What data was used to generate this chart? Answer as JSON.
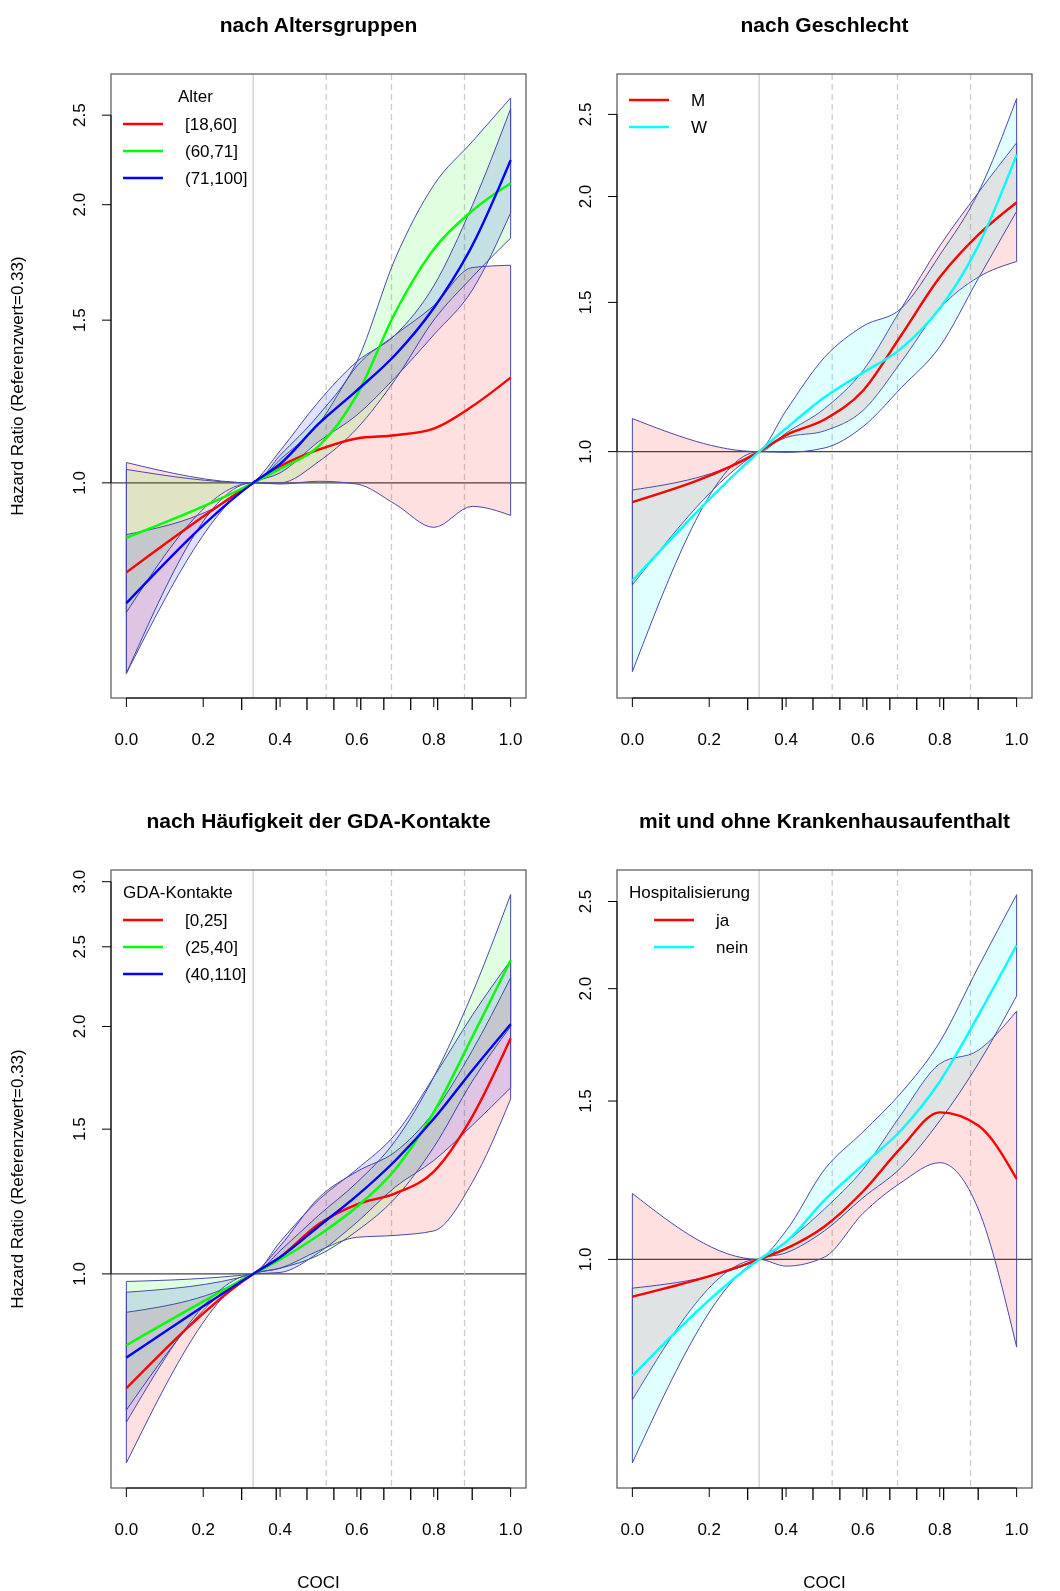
{
  "chart_data": [
    {
      "type": "line",
      "title": "nach Altersgruppen",
      "ylabel": "Hazard Ratio (Referenzwert=0.33)",
      "legend_title": "Alter",
      "legend": "top left",
      "log": "y",
      "x": [
        0,
        0.33,
        0.4,
        0.5,
        0.6,
        0.7,
        0.8,
        0.9,
        1.0
      ],
      "xlim": [
        -0.04,
        1.04
      ],
      "ylim": [
        0.585,
        2.77
      ],
      "xticks": [
        {
          "value": 0,
          "label": "0.0"
        },
        {
          "value": 0.2,
          "label": "0.2"
        },
        {
          "value": 0.4,
          "label": "0.4"
        },
        {
          "value": 0.6,
          "label": "0.6"
        },
        {
          "value": 0.8,
          "label": "0.8"
        },
        {
          "value": 1,
          "label": "1.0"
        },
        {
          "value": 0.3,
          "label": null
        },
        {
          "value": 0.39,
          "label": null
        },
        {
          "value": 0.47,
          "label": null
        },
        {
          "value": 0.54,
          "label": null
        },
        {
          "value": 0.61,
          "label": null
        },
        {
          "value": 0.67,
          "label": null
        },
        {
          "value": 0.74,
          "label": null
        },
        {
          "value": 0.81,
          "label": null
        },
        {
          "value": 0.9,
          "label": null
        }
      ],
      "yticks": [
        {
          "value": 1,
          "label": "1.0"
        },
        {
          "value": 1.5,
          "label": "1.5"
        },
        {
          "value": 2,
          "label": "2.0"
        },
        {
          "value": 2.5,
          "label": "2.5"
        }
      ],
      "ref_lines": [
        {
          "axis": "y",
          "value": 1,
          "color": "#444444",
          "line_style": "solid"
        },
        {
          "axis": "x",
          "value": 0.33,
          "color": "#cccccc",
          "line_style": "solid"
        },
        {
          "axis": "x",
          "value": 0.52,
          "color": "#cccccc",
          "line_style": "dashed"
        },
        {
          "axis": "x",
          "value": 0.69,
          "color": "#cccccc",
          "line_style": "dashed"
        },
        {
          "axis": "x",
          "value": 0.88,
          "color": "#cccccc",
          "line_style": "dashed"
        }
      ],
      "series": [
        {
          "name": "[18,60]",
          "color": "#ff0000",
          "values": [
            0.8,
            1,
            1.042,
            1.086,
            1.117,
            1.126,
            1.145,
            1.21,
            1.3
          ],
          "upper": [
            1.052,
            1,
            1.06,
            1.158,
            1.338,
            1.446,
            1.555,
            1.71,
            1.72
          ],
          "lower": [
            0.622,
            1,
            0.997,
            1.004,
            0.997,
            0.948,
            0.895,
            0.943,
            0.922
          ]
        },
        {
          "name": "(60,71]",
          "color": "#00ff00",
          "values": [
            0.872,
            1,
            1.036,
            1.095,
            1.245,
            1.53,
            1.79,
            1.97,
            2.11
          ],
          "upper": [
            1.034,
            1,
            1.071,
            1.184,
            1.353,
            1.75,
            2.1,
            2.34,
            2.61
          ],
          "lower": [
            0.724,
            1,
            1.0,
            1.054,
            1.145,
            1.294,
            1.5,
            1.67,
            1.84
          ]
        },
        {
          "name": "(71,100]",
          "color": "#0000ff",
          "values": [
            0.741,
            1,
            1.048,
            1.158,
            1.259,
            1.376,
            1.546,
            1.806,
            2.235
          ],
          "upper": [
            0.879,
            1,
            1.083,
            1.224,
            1.353,
            1.446,
            1.634,
            1.995,
            2.54
          ],
          "lower": [
            0.622,
            1,
            1.025,
            1.108,
            1.184,
            1.301,
            1.446,
            1.616,
            1.96
          ]
        }
      ]
    },
    {
      "type": "line",
      "title": "nach Geschlecht",
      "legend": "top left",
      "log": "y",
      "x": [
        0,
        0.33,
        0.4,
        0.5,
        0.6,
        0.7,
        0.8,
        0.9,
        1.0
      ],
      "xlim": [
        -0.04,
        1.04
      ],
      "ylim": [
        0.512,
        2.79
      ],
      "xticks": [
        {
          "value": 0,
          "label": "0.0"
        },
        {
          "value": 0.2,
          "label": "0.2"
        },
        {
          "value": 0.4,
          "label": "0.4"
        },
        {
          "value": 0.6,
          "label": "0.6"
        },
        {
          "value": 0.8,
          "label": "0.8"
        },
        {
          "value": 1,
          "label": "1.0"
        },
        {
          "value": 0.3,
          "label": null
        },
        {
          "value": 0.39,
          "label": null
        },
        {
          "value": 0.47,
          "label": null
        },
        {
          "value": 0.54,
          "label": null
        },
        {
          "value": 0.61,
          "label": null
        },
        {
          "value": 0.67,
          "label": null
        },
        {
          "value": 0.74,
          "label": null
        },
        {
          "value": 0.81,
          "label": null
        },
        {
          "value": 0.9,
          "label": null
        }
      ],
      "yticks": [
        {
          "value": 1,
          "label": "1.0"
        },
        {
          "value": 1.5,
          "label": "1.5"
        },
        {
          "value": 2,
          "label": "2.0"
        },
        {
          "value": 2.5,
          "label": "2.5"
        }
      ],
      "ref_lines": [
        {
          "axis": "y",
          "value": 1,
          "color": "#444444",
          "line_style": "solid"
        },
        {
          "axis": "x",
          "value": 0.33,
          "color": "#cccccc",
          "line_style": "solid"
        },
        {
          "axis": "x",
          "value": 0.52,
          "color": "#cccccc",
          "line_style": "dashed"
        },
        {
          "axis": "x",
          "value": 0.69,
          "color": "#cccccc",
          "line_style": "dashed"
        },
        {
          "axis": "x",
          "value": 0.88,
          "color": "#cccccc",
          "line_style": "dashed"
        }
      ],
      "series": [
        {
          "name": "M",
          "color": "#ff0000",
          "values": [
            0.872,
            1,
            1.046,
            1.091,
            1.18,
            1.373,
            1.606,
            1.802,
            1.968
          ],
          "upper": [
            1.094,
            1,
            1.052,
            1.124,
            1.246,
            1.476,
            1.749,
            2.02,
            2.314
          ],
          "lower": [
            0.696,
            1,
            1.039,
            1.058,
            1.118,
            1.277,
            1.476,
            1.606,
            1.676
          ]
        },
        {
          "name": "W",
          "color": "#00ffff",
          "values": [
            0.704,
            1,
            1.065,
            1.159,
            1.239,
            1.324,
            1.476,
            1.749,
            2.24
          ],
          "upper": [
            0.901,
            1,
            1.118,
            1.292,
            1.406,
            1.476,
            1.706,
            2.02,
            2.61
          ],
          "lower": [
            0.55,
            1,
            0.998,
            1.01,
            1.07,
            1.19,
            1.33,
            1.6,
            1.921
          ]
        }
      ]
    },
    {
      "type": "line",
      "title": "nach Häufigkeit der GDA-Kontakte",
      "ylabel": "Hazard Ratio (Referenzwert=0.33)",
      "xlabel": "COCI",
      "legend_title": "GDA-Kontakte",
      "legend": "top left",
      "log": "y",
      "x": [
        0,
        0.33,
        0.4,
        0.5,
        0.6,
        0.7,
        0.8,
        0.9,
        1.0
      ],
      "xlim": [
        -0.04,
        1.04
      ],
      "ylim": [
        0.549,
        3.1
      ],
      "xticks": [
        {
          "value": 0,
          "label": "0.0"
        },
        {
          "value": 0.2,
          "label": "0.2"
        },
        {
          "value": 0.4,
          "label": "0.4"
        },
        {
          "value": 0.6,
          "label": "0.6"
        },
        {
          "value": 0.8,
          "label": "0.8"
        },
        {
          "value": 1,
          "label": "1.0"
        },
        {
          "value": 0.3,
          "label": null
        },
        {
          "value": 0.39,
          "label": null
        },
        {
          "value": 0.47,
          "label": null
        },
        {
          "value": 0.54,
          "label": null
        },
        {
          "value": 0.61,
          "label": null
        },
        {
          "value": 0.67,
          "label": null
        },
        {
          "value": 0.74,
          "label": null
        },
        {
          "value": 0.81,
          "label": null
        },
        {
          "value": 0.9,
          "label": null
        }
      ],
      "yticks": [
        {
          "value": 1,
          "label": "1.0"
        },
        {
          "value": 1.5,
          "label": "1.5"
        },
        {
          "value": 2,
          "label": "2.0"
        },
        {
          "value": 2.5,
          "label": "2.5"
        },
        {
          "value": 3,
          "label": "3.0"
        }
      ],
      "ref_lines": [
        {
          "axis": "y",
          "value": 1,
          "color": "#444444",
          "line_style": "solid"
        },
        {
          "axis": "x",
          "value": 0.33,
          "color": "#cccccc",
          "line_style": "solid"
        },
        {
          "axis": "x",
          "value": 0.52,
          "color": "#cccccc",
          "line_style": "dashed"
        },
        {
          "axis": "x",
          "value": 0.69,
          "color": "#cccccc",
          "line_style": "dashed"
        },
        {
          "axis": "x",
          "value": 0.88,
          "color": "#cccccc",
          "line_style": "dashed"
        }
      ],
      "series": [
        {
          "name": "[0,25]",
          "color": "#ff0000",
          "values": [
            0.726,
            1,
            1.048,
            1.149,
            1.215,
            1.253,
            1.332,
            1.554,
            1.935
          ],
          "upper": [
            0.898,
            1,
            1.081,
            1.237,
            1.332,
            1.408,
            1.573,
            1.869,
            2.293
          ],
          "lower": [
            0.589,
            1,
            1.016,
            1.067,
            1.108,
            1.114,
            1.128,
            1.292,
            1.632
          ]
        },
        {
          "name": "(25,40]",
          "color": "#00ff00",
          "values": [
            0.819,
            1,
            1.041,
            1.114,
            1.207,
            1.341,
            1.573,
            1.941,
            2.407
          ],
          "upper": [
            0.979,
            1,
            1.067,
            1.178,
            1.292,
            1.452,
            1.736,
            2.193,
            2.894
          ],
          "lower": [
            0.683,
            1,
            1.016,
            1.054,
            1.128,
            1.237,
            1.426,
            1.715,
            2.0
          ]
        },
        {
          "name": "(40,110]",
          "color": "#0000ff",
          "values": [
            0.791,
            1,
            1.048,
            1.142,
            1.245,
            1.374,
            1.544,
            1.768,
            2.013
          ],
          "upper": [
            0.95,
            1,
            1.094,
            1.23,
            1.341,
            1.479,
            1.736,
            2.063,
            2.407
          ],
          "lower": [
            0.66,
            1,
            1.004,
            1.061,
            1.156,
            1.276,
            1.374,
            1.516,
            1.684
          ]
        }
      ]
    },
    {
      "type": "line",
      "title": "mit und ohne Krankenhausaufenthalt",
      "xlabel": "COCI",
      "legend_title": "Hospitalisierung",
      "legend": "top left",
      "log": "y",
      "x": [
        0,
        0.33,
        0.4,
        0.5,
        0.6,
        0.7,
        0.8,
        0.9,
        1.0
      ],
      "xlim": [
        -0.04,
        1.04
      ],
      "ylim": [
        0.557,
        2.71
      ],
      "xticks": [
        {
          "value": 0,
          "label": "0.0"
        },
        {
          "value": 0.2,
          "label": "0.2"
        },
        {
          "value": 0.4,
          "label": "0.4"
        },
        {
          "value": 0.6,
          "label": "0.6"
        },
        {
          "value": 0.8,
          "label": "0.8"
        },
        {
          "value": 1,
          "label": "1.0"
        },
        {
          "value": 0.3,
          "label": null
        },
        {
          "value": 0.39,
          "label": null
        },
        {
          "value": 0.47,
          "label": null
        },
        {
          "value": 0.54,
          "label": null
        },
        {
          "value": 0.61,
          "label": null
        },
        {
          "value": 0.67,
          "label": null
        },
        {
          "value": 0.74,
          "label": null
        },
        {
          "value": 0.81,
          "label": null
        },
        {
          "value": 0.9,
          "label": null
        }
      ],
      "yticks": [
        {
          "value": 1,
          "label": "1.0"
        },
        {
          "value": 1.5,
          "label": "1.5"
        },
        {
          "value": 2,
          "label": "2.0"
        },
        {
          "value": 2.5,
          "label": "2.5"
        }
      ],
      "ref_lines": [
        {
          "axis": "y",
          "value": 1,
          "color": "#444444",
          "line_style": "solid"
        },
        {
          "axis": "x",
          "value": 0.33,
          "color": "#cccccc",
          "line_style": "solid"
        },
        {
          "axis": "x",
          "value": 0.52,
          "color": "#cccccc",
          "line_style": "dashed"
        },
        {
          "axis": "x",
          "value": 0.69,
          "color": "#cccccc",
          "line_style": "dashed"
        },
        {
          "axis": "x",
          "value": 0.88,
          "color": "#cccccc",
          "line_style": "dashed"
        }
      ],
      "series": [
        {
          "name": "ja",
          "color": "#ff0000",
          "values": [
            0.909,
            1,
            1.028,
            1.088,
            1.19,
            1.332,
            1.457,
            1.409,
            1.229
          ],
          "upper": [
            1.184,
            1,
            1.046,
            1.138,
            1.259,
            1.45,
            1.65,
            1.708,
            1.888
          ],
          "lower": [
            0.698,
            1,
            0.983,
            1.006,
            1.125,
            1.218,
            1.281,
            1.138,
            0.799
          ]
        },
        {
          "name": "nein",
          "color": "#00ffff",
          "values": [
            0.742,
            1,
            1.046,
            1.164,
            1.274,
            1.393,
            1.577,
            1.867,
            2.235
          ],
          "upper": [
            0.929,
            1,
            1.076,
            1.259,
            1.386,
            1.533,
            1.745,
            2.113,
            2.544
          ],
          "lower": [
            0.594,
            1,
            1.017,
            1.076,
            1.171,
            1.266,
            1.426,
            1.65,
            1.963
          ]
        }
      ]
    }
  ]
}
